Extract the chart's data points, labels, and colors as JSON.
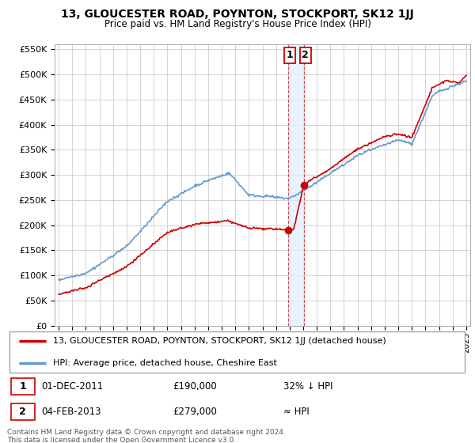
{
  "title": "13, GLOUCESTER ROAD, POYNTON, STOCKPORT, SK12 1JJ",
  "subtitle": "Price paid vs. HM Land Registry's House Price Index (HPI)",
  "ylim": [
    0,
    560000
  ],
  "yticks": [
    0,
    50000,
    100000,
    150000,
    200000,
    250000,
    300000,
    350000,
    400000,
    450000,
    500000,
    550000
  ],
  "ytick_labels": [
    "£0",
    "£50K",
    "£100K",
    "£150K",
    "£200K",
    "£250K",
    "£300K",
    "£350K",
    "£400K",
    "£450K",
    "£500K",
    "£550K"
  ],
  "xlim_start": 1994.7,
  "xlim_end": 2025.3,
  "background_color": "#ffffff",
  "grid_color": "#cccccc",
  "red_color": "#cc0000",
  "blue_color": "#6699cc",
  "shade_color": "#ddeeff",
  "transaction1": {
    "date": "01-DEC-2011",
    "price": 190000,
    "label": "32% ↓ HPI",
    "year": 2011.92
  },
  "transaction2": {
    "date": "04-FEB-2013",
    "price": 279000,
    "label": "≈ HPI",
    "year": 2013.08
  },
  "legend_red_label": "13, GLOUCESTER ROAD, POYNTON, STOCKPORT, SK12 1JJ (detached house)",
  "legend_blue_label": "HPI: Average price, detached house, Cheshire East",
  "footer_line1": "Contains HM Land Registry data © Crown copyright and database right 2024.",
  "footer_line2": "This data is licensed under the Open Government Licence v3.0."
}
